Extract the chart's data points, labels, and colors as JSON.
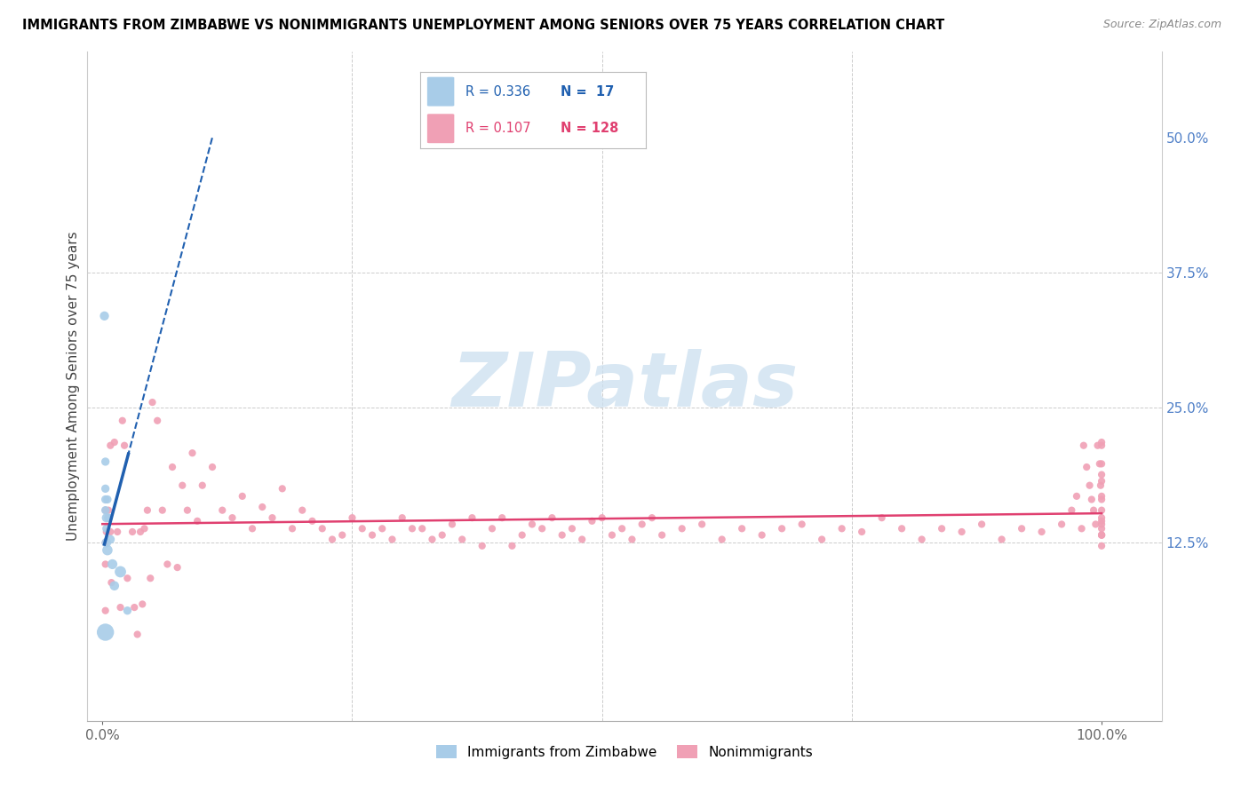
{
  "title": "IMMIGRANTS FROM ZIMBABWE VS NONIMMIGRANTS UNEMPLOYMENT AMONG SENIORS OVER 75 YEARS CORRELATION CHART",
  "source": "Source: ZipAtlas.com",
  "ylabel": "Unemployment Among Seniors over 75 years",
  "legend_blue_R": "0.336",
  "legend_blue_N": "17",
  "legend_pink_R": "0.107",
  "legend_pink_N": "128",
  "blue_color": "#a8cce8",
  "blue_line_color": "#2060b0",
  "pink_color": "#f0a0b5",
  "pink_line_color": "#e04070",
  "grid_color": "#cccccc",
  "watermark_color": "#cce0f0",
  "right_tick_color": "#5080c8",
  "bg_color": "#ffffff",
  "blue_x": [
    0.002,
    0.003,
    0.003,
    0.003,
    0.003,
    0.004,
    0.004,
    0.004,
    0.005,
    0.005,
    0.006,
    0.008,
    0.01,
    0.012,
    0.018,
    0.025,
    0.003
  ],
  "blue_y": [
    0.335,
    0.2,
    0.175,
    0.165,
    0.155,
    0.148,
    0.138,
    0.125,
    0.118,
    0.165,
    0.148,
    0.128,
    0.105,
    0.085,
    0.098,
    0.062,
    0.042
  ],
  "blue_s": [
    55,
    45,
    45,
    45,
    45,
    55,
    45,
    60,
    70,
    45,
    48,
    50,
    65,
    58,
    85,
    45,
    195
  ],
  "pink_x": [
    0.003,
    0.003,
    0.003,
    0.003,
    0.004,
    0.006,
    0.008,
    0.008,
    0.009,
    0.012,
    0.015,
    0.018,
    0.02,
    0.022,
    0.025,
    0.03,
    0.032,
    0.035,
    0.038,
    0.04,
    0.042,
    0.045,
    0.048,
    0.05,
    0.055,
    0.06,
    0.065,
    0.07,
    0.075,
    0.08,
    0.085,
    0.09,
    0.095,
    0.1,
    0.11,
    0.12,
    0.13,
    0.14,
    0.15,
    0.16,
    0.17,
    0.18,
    0.19,
    0.2,
    0.21,
    0.22,
    0.23,
    0.24,
    0.25,
    0.26,
    0.27,
    0.28,
    0.29,
    0.3,
    0.31,
    0.32,
    0.33,
    0.34,
    0.35,
    0.36,
    0.37,
    0.38,
    0.39,
    0.4,
    0.41,
    0.42,
    0.43,
    0.44,
    0.45,
    0.46,
    0.47,
    0.48,
    0.49,
    0.5,
    0.51,
    0.52,
    0.53,
    0.54,
    0.55,
    0.56,
    0.58,
    0.6,
    0.62,
    0.64,
    0.66,
    0.68,
    0.7,
    0.72,
    0.74,
    0.76,
    0.78,
    0.8,
    0.82,
    0.84,
    0.86,
    0.88,
    0.9,
    0.92,
    0.94,
    0.96,
    0.97,
    0.975,
    0.98,
    0.982,
    0.985,
    0.988,
    0.99,
    0.992,
    0.994,
    0.996,
    0.998,
    0.999,
    1.0,
    1.0,
    1.0,
    1.0,
    1.0,
    1.0,
    1.0,
    1.0,
    1.0,
    1.0,
    1.0,
    1.0,
    1.0,
    1.0,
    1.0,
    1.0
  ],
  "pink_y": [
    0.155,
    0.125,
    0.105,
    0.062,
    0.135,
    0.155,
    0.215,
    0.135,
    0.088,
    0.218,
    0.135,
    0.065,
    0.238,
    0.215,
    0.092,
    0.135,
    0.065,
    0.04,
    0.135,
    0.068,
    0.138,
    0.155,
    0.092,
    0.255,
    0.238,
    0.155,
    0.105,
    0.195,
    0.102,
    0.178,
    0.155,
    0.208,
    0.145,
    0.178,
    0.195,
    0.155,
    0.148,
    0.168,
    0.138,
    0.158,
    0.148,
    0.175,
    0.138,
    0.155,
    0.145,
    0.138,
    0.128,
    0.132,
    0.148,
    0.138,
    0.132,
    0.138,
    0.128,
    0.148,
    0.138,
    0.138,
    0.128,
    0.132,
    0.142,
    0.128,
    0.148,
    0.122,
    0.138,
    0.148,
    0.122,
    0.132,
    0.142,
    0.138,
    0.148,
    0.132,
    0.138,
    0.128,
    0.145,
    0.148,
    0.132,
    0.138,
    0.128,
    0.142,
    0.148,
    0.132,
    0.138,
    0.142,
    0.128,
    0.138,
    0.132,
    0.138,
    0.142,
    0.128,
    0.138,
    0.135,
    0.148,
    0.138,
    0.128,
    0.138,
    0.135,
    0.142,
    0.128,
    0.138,
    0.135,
    0.142,
    0.155,
    0.168,
    0.138,
    0.215,
    0.195,
    0.178,
    0.165,
    0.155,
    0.142,
    0.215,
    0.198,
    0.178,
    0.218,
    0.198,
    0.182,
    0.165,
    0.155,
    0.142,
    0.132,
    0.215,
    0.188,
    0.168,
    0.145,
    0.132,
    0.138,
    0.148,
    0.132,
    0.122
  ],
  "pink_s": [
    35,
    35,
    35,
    35,
    35,
    35,
    35,
    35,
    35,
    35,
    35,
    35,
    35,
    35,
    35,
    35,
    35,
    35,
    35,
    35,
    35,
    35,
    35,
    35,
    35,
    35,
    35,
    35,
    35,
    35,
    35,
    35,
    35,
    35,
    35,
    35,
    35,
    35,
    35,
    35,
    35,
    35,
    35,
    35,
    35,
    35,
    35,
    35,
    35,
    35,
    35,
    35,
    35,
    35,
    35,
    35,
    35,
    35,
    35,
    35,
    35,
    35,
    35,
    35,
    35,
    35,
    35,
    35,
    35,
    35,
    35,
    35,
    35,
    35,
    35,
    35,
    35,
    35,
    35,
    35,
    35,
    35,
    35,
    35,
    35,
    35,
    35,
    35,
    35,
    35,
    35,
    35,
    35,
    35,
    35,
    35,
    35,
    35,
    35,
    35,
    35,
    35,
    35,
    35,
    35,
    35,
    35,
    35,
    35,
    35,
    35,
    35,
    35,
    35,
    35,
    35,
    35,
    35,
    35,
    35,
    35,
    35,
    35,
    35,
    35,
    35,
    35,
    35
  ]
}
